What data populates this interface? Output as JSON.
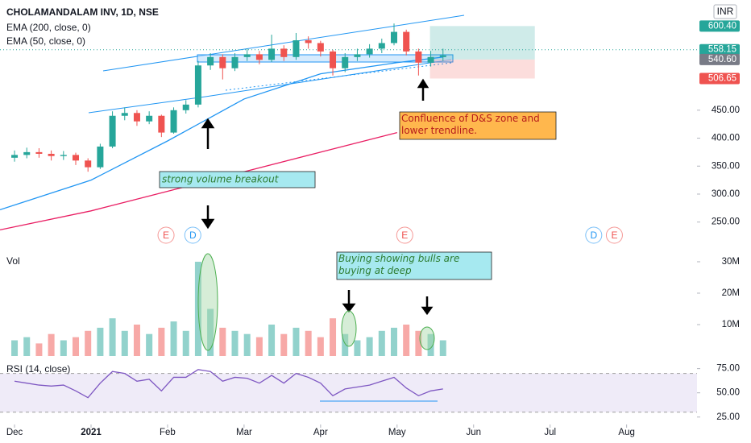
{
  "chart_data": [
    {
      "type": "candlestick",
      "title": "CHOLAMANDALAM INV, 1D, NSE",
      "currency": "INR",
      "x": [
        0,
        0.16,
        0.32,
        0.48,
        0.64,
        0.8,
        0.96,
        1.12,
        1.28,
        1.44,
        1.6,
        1.76,
        1.92,
        2.08,
        2.24,
        2.4,
        2.56,
        2.72,
        2.88,
        3.04,
        3.2,
        3.36,
        3.52,
        3.68,
        3.84,
        4.0,
        4.16,
        4.32,
        4.48,
        4.64,
        4.8,
        4.96,
        5.12,
        5.28,
        5.44,
        5.6
      ],
      "open": [
        365,
        370,
        375,
        372,
        368,
        370,
        360,
        348,
        385,
        440,
        445,
        430,
        440,
        410,
        450,
        460,
        530,
        545,
        525,
        545,
        550,
        540,
        560,
        545,
        575,
        570,
        555,
        525,
        545,
        550,
        560,
        570,
        590,
        555,
        535,
        545
      ],
      "high": [
        378,
        383,
        382,
        378,
        377,
        374,
        364,
        390,
        448,
        455,
        450,
        448,
        442,
        455,
        468,
        538,
        552,
        550,
        552,
        560,
        556,
        585,
        566,
        588,
        582,
        574,
        558,
        552,
        560,
        568,
        578,
        605,
        594,
        560,
        556,
        560
      ],
      "low": [
        358,
        364,
        365,
        360,
        361,
        352,
        340,
        345,
        382,
        432,
        422,
        425,
        402,
        408,
        444,
        455,
        522,
        505,
        520,
        538,
        532,
        536,
        538,
        540,
        560,
        546,
        512,
        518,
        538,
        544,
        552,
        566,
        548,
        512,
        528,
        538
      ],
      "close": [
        370,
        375,
        372,
        368,
        370,
        360,
        348,
        385,
        440,
        445,
        430,
        440,
        410,
        450,
        460,
        530,
        545,
        525,
        545,
        550,
        540,
        560,
        545,
        575,
        570,
        555,
        525,
        545,
        550,
        560,
        570,
        590,
        555,
        535,
        545,
        548
      ],
      "up_color": "#26a69a",
      "down_color": "#ef5350",
      "ylim": [
        215,
        647
      ],
      "yticks": [
        {
          "value": 250,
          "label": "250.00"
        },
        {
          "value": 300,
          "label": "300.00"
        },
        {
          "value": 350,
          "label": "350.00"
        },
        {
          "value": 400,
          "label": "400.00"
        },
        {
          "value": 450,
          "label": "450.00"
        }
      ],
      "lines": [
        {
          "name": "EMA (200, close, 0)",
          "color": "#e91e63",
          "x": [
            -0.19,
            1,
            2,
            3,
            4,
            5
          ],
          "values": [
            236,
            270,
            305,
            340,
            375,
            410
          ]
        },
        {
          "name": "EMA (50, close, 0)",
          "color": "#2196f3",
          "x": [
            -0.19,
            1,
            2,
            3,
            4,
            5,
            5.6
          ],
          "values": [
            272,
            325,
            395,
            470,
            515,
            535,
            545
          ]
        }
      ],
      "price_labels": [
        {
          "value": 600.4,
          "label": "600.40",
          "color": "#26a69a"
        },
        {
          "value": 558.15,
          "label": "558.15",
          "color": "#26a69a"
        },
        {
          "value": 540.6,
          "label": "540.60",
          "color": "#787b86"
        },
        {
          "value": 506.65,
          "label": "506.65",
          "color": "#ef5350"
        }
      ],
      "annotations": [
        "strong volume breakout",
        "Confluence of D&S zone and lower trendline."
      ],
      "events": [
        {
          "label": "E",
          "x": 1.98
        },
        {
          "label": "D",
          "x": 2.33
        },
        {
          "label": "E",
          "x": 5.1
        },
        {
          "label": "D",
          "x": 7.57
        },
        {
          "label": "E",
          "x": 7.84
        }
      ]
    },
    {
      "type": "bar",
      "title": "Vol",
      "x": [
        0,
        0.16,
        0.32,
        0.48,
        0.64,
        0.8,
        0.96,
        1.12,
        1.28,
        1.44,
        1.6,
        1.76,
        1.92,
        2.08,
        2.24,
        2.4,
        2.56,
        2.72,
        2.88,
        3.04,
        3.2,
        3.36,
        3.52,
        3.68,
        3.84,
        4.0,
        4.16,
        4.32,
        4.48,
        4.64,
        4.8,
        4.96,
        5.12,
        5.28,
        5.44,
        5.6
      ],
      "values": [
        5,
        6,
        4,
        7,
        5,
        6,
        8,
        9,
        12,
        8,
        10,
        7,
        9,
        11,
        8,
        30,
        15,
        9,
        8,
        7,
        6,
        10,
        7,
        9,
        8,
        6,
        12,
        7,
        5,
        6,
        8,
        9,
        10,
        8,
        7,
        5
      ],
      "ylim": [
        0,
        36.4
      ],
      "yticks": [
        {
          "value": 10,
          "label": "10M"
        },
        {
          "value": 20,
          "label": "20M"
        },
        {
          "value": 30,
          "label": "30M"
        }
      ],
      "annotations": [
        "Buying showing bulls are buying at deep"
      ]
    },
    {
      "type": "line",
      "title": "RSI (14, close)",
      "color": "#7e57c2",
      "x": [
        0,
        0.16,
        0.32,
        0.48,
        0.64,
        0.8,
        0.96,
        1.12,
        1.28,
        1.44,
        1.6,
        1.76,
        1.92,
        2.08,
        2.24,
        2.4,
        2.56,
        2.72,
        2.88,
        3.04,
        3.2,
        3.36,
        3.52,
        3.68,
        3.84,
        4.0,
        4.16,
        4.32,
        4.48,
        4.64,
        4.8,
        4.96,
        5.12,
        5.28,
        5.44,
        5.6
      ],
      "values": [
        62,
        60,
        58,
        57,
        58,
        52,
        45,
        60,
        72,
        70,
        62,
        64,
        52,
        66,
        66,
        74,
        72,
        62,
        66,
        65,
        60,
        68,
        60,
        70,
        66,
        60,
        47,
        54,
        56,
        58,
        62,
        66,
        55,
        47,
        52,
        54
      ],
      "band": [
        30,
        70
      ],
      "ylim": [
        19,
        85.5
      ],
      "yticks": [
        {
          "value": 25,
          "label": "25.00"
        },
        {
          "value": 50,
          "label": "50.00"
        },
        {
          "value": 75,
          "label": "75.00"
        }
      ],
      "xlim": [
        -0.19,
        8.92
      ],
      "xticks": [
        {
          "value": 0,
          "label": "Dec"
        },
        {
          "value": 1,
          "label": "2021"
        },
        {
          "value": 2,
          "label": "Feb"
        },
        {
          "value": 3,
          "label": "Mar"
        },
        {
          "value": 4,
          "label": "Apr"
        },
        {
          "value": 5,
          "label": "May"
        },
        {
          "value": 6,
          "label": "Jun"
        },
        {
          "value": 7,
          "label": "Jul"
        },
        {
          "value": 8,
          "label": "Aug"
        }
      ]
    }
  ]
}
